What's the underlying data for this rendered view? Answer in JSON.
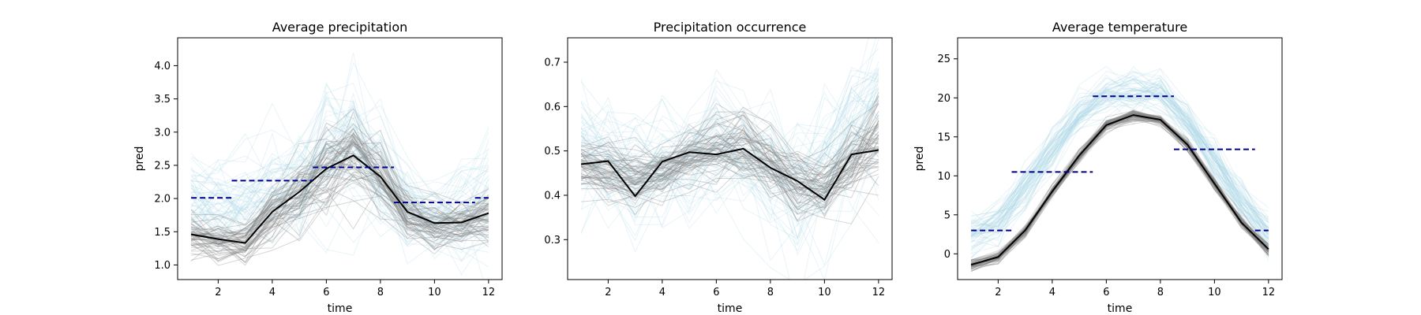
{
  "colors": {
    "ensemble_blue": "#add8e6",
    "ensemble_gray": "#808080",
    "mean_line": "#000000",
    "observed_dashed": "#00008b"
  },
  "chart_data": [
    {
      "type": "line",
      "title": "Average precipitation",
      "xlabel": "time",
      "ylabel": "pred",
      "xlim": [
        0.5,
        12.5
      ],
      "ylim": [
        0.78,
        4.42
      ],
      "xticks": [
        2,
        4,
        6,
        8,
        10,
        12
      ],
      "yticks": [
        1.0,
        1.5,
        2.0,
        2.5,
        3.0,
        3.5,
        4.0
      ],
      "ytick_labels": [
        "1.0",
        "1.5",
        "2.0",
        "2.5",
        "3.0",
        "3.5",
        "4.0"
      ],
      "x": [
        1,
        2,
        3,
        4,
        5,
        6,
        7,
        8,
        9,
        10,
        11,
        12
      ],
      "series": [
        {
          "role": "ensemble_blue",
          "center": [
            1.95,
            1.8,
            1.85,
            2.05,
            2.25,
            2.6,
            2.75,
            2.35,
            1.85,
            1.7,
            1.75,
            2.0
          ],
          "spread": [
            0.4,
            0.35,
            0.4,
            0.45,
            0.5,
            0.65,
            0.6,
            0.5,
            0.4,
            0.35,
            0.45,
            0.55
          ],
          "count": 60
        },
        {
          "role": "ensemble_gray",
          "center": [
            1.45,
            1.38,
            1.32,
            1.8,
            2.1,
            2.45,
            2.65,
            2.3,
            1.75,
            1.62,
            1.62,
            1.75
          ],
          "spread": [
            0.18,
            0.17,
            0.16,
            0.25,
            0.28,
            0.35,
            0.35,
            0.3,
            0.2,
            0.18,
            0.18,
            0.22
          ],
          "count": 60
        },
        {
          "role": "mean",
          "values": [
            1.46,
            1.39,
            1.33,
            1.8,
            2.1,
            2.45,
            2.65,
            2.33,
            1.8,
            1.63,
            1.64,
            1.78
          ]
        }
      ],
      "observed_segments": [
        {
          "x": [
            1,
            2.5
          ],
          "y": 2.01
        },
        {
          "x": [
            2.5,
            5.5
          ],
          "y": 2.27
        },
        {
          "x": [
            5.5,
            8.5
          ],
          "y": 2.47
        },
        {
          "x": [
            8.5,
            11.5
          ],
          "y": 1.94
        },
        {
          "x": [
            11.5,
            12
          ],
          "y": 2.01
        }
      ]
    },
    {
      "type": "line",
      "title": "Precipitation occurrence",
      "xlabel": "time",
      "ylabel": "",
      "xlim": [
        0.5,
        12.5
      ],
      "ylim": [
        0.21,
        0.755
      ],
      "xticks": [
        2,
        4,
        6,
        8,
        10,
        12
      ],
      "yticks": [
        0.3,
        0.4,
        0.5,
        0.6,
        0.7
      ],
      "ytick_labels": [
        "0.3",
        "0.4",
        "0.5",
        "0.6",
        "0.7"
      ],
      "x": [
        1,
        2,
        3,
        4,
        5,
        6,
        7,
        8,
        9,
        10,
        11,
        12
      ],
      "series": [
        {
          "role": "ensemble_blue",
          "center": [
            0.5,
            0.48,
            0.46,
            0.46,
            0.48,
            0.5,
            0.49,
            0.45,
            0.41,
            0.44,
            0.55,
            0.58
          ],
          "spread": [
            0.08,
            0.07,
            0.07,
            0.07,
            0.07,
            0.07,
            0.07,
            0.08,
            0.09,
            0.1,
            0.09,
            0.09
          ],
          "count": 60
        },
        {
          "role": "ensemble_gray",
          "center": [
            0.46,
            0.45,
            0.43,
            0.45,
            0.48,
            0.5,
            0.51,
            0.47,
            0.42,
            0.41,
            0.47,
            0.52
          ],
          "spread": [
            0.03,
            0.03,
            0.03,
            0.03,
            0.03,
            0.04,
            0.04,
            0.04,
            0.04,
            0.04,
            0.04,
            0.05
          ],
          "count": 60
        },
        {
          "role": "mean",
          "values": [
            0.47,
            0.477,
            0.398,
            0.476,
            0.497,
            0.492,
            0.505,
            0.462,
            0.432,
            0.39,
            0.492,
            0.502
          ]
        }
      ],
      "observed_segments": []
    },
    {
      "type": "line",
      "title": "Average temperature",
      "xlabel": "time",
      "ylabel": "pred",
      "xlim": [
        0.5,
        12.5
      ],
      "ylim": [
        -3.3,
        27.7
      ],
      "xticks": [
        2,
        4,
        6,
        8,
        10,
        12
      ],
      "yticks": [
        0,
        5,
        10,
        15,
        20,
        25
      ],
      "ytick_labels": [
        "0",
        "5",
        "10",
        "15",
        "20",
        "25"
      ],
      "x": [
        1,
        2,
        3,
        4,
        5,
        6,
        7,
        8,
        9,
        10,
        11,
        12
      ],
      "series": [
        {
          "role": "ensemble_blue",
          "center": [
            2.5,
            4.0,
            8.5,
            13.5,
            18.0,
            20.5,
            21.0,
            20.5,
            17.0,
            12.0,
            7.0,
            2.5
          ],
          "spread": [
            1.5,
            1.5,
            1.5,
            1.5,
            1.5,
            1.5,
            1.5,
            1.5,
            1.5,
            1.5,
            1.5,
            1.5
          ],
          "count": 60
        },
        {
          "role": "ensemble_gray",
          "center": [
            -1.5,
            -0.5,
            3.0,
            8.0,
            12.5,
            16.5,
            17.8,
            17.2,
            14.0,
            9.0,
            4.0,
            0.5
          ],
          "spread": [
            0.4,
            0.4,
            0.4,
            0.4,
            0.4,
            0.4,
            0.4,
            0.4,
            0.4,
            0.4,
            0.4,
            0.4
          ],
          "count": 60
        },
        {
          "role": "mean",
          "values": [
            -1.4,
            -0.4,
            3.0,
            8.0,
            12.6,
            16.5,
            17.8,
            17.2,
            14.0,
            9.0,
            4.0,
            0.6
          ]
        }
      ],
      "observed_segments": [
        {
          "x": [
            1,
            2.5
          ],
          "y": 3.0
        },
        {
          "x": [
            2.5,
            5.5
          ],
          "y": 10.5
        },
        {
          "x": [
            5.5,
            8.5
          ],
          "y": 20.2
        },
        {
          "x": [
            8.5,
            11.5
          ],
          "y": 13.4
        },
        {
          "x": [
            11.5,
            12
          ],
          "y": 3.0
        }
      ]
    }
  ]
}
